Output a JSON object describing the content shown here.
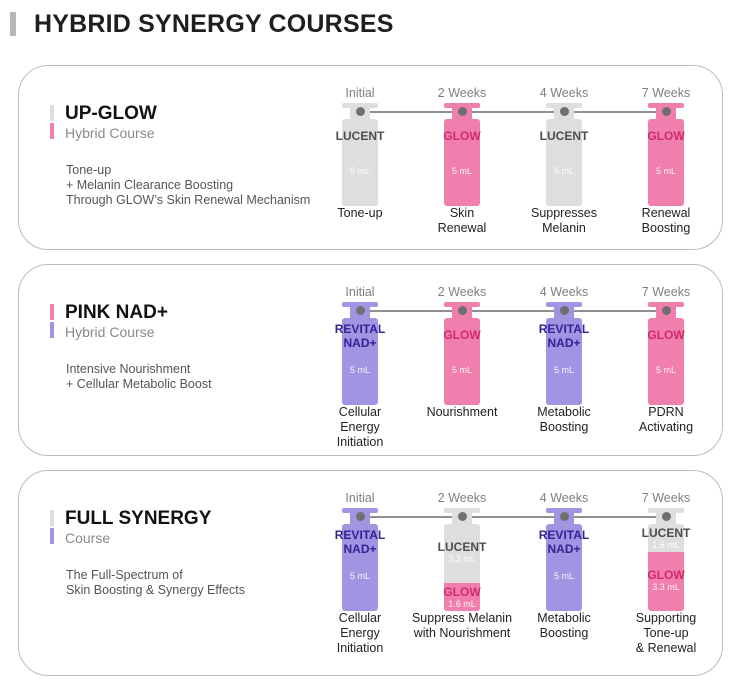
{
  "page_title": "HYBRID SYNERGY COURSES",
  "colors": {
    "gray_vial": "#dedede",
    "pink_vial": "#f07fad",
    "purple_vial": "#a294e2",
    "lucent_text": "#4d4d4d",
    "glow_text": "#d22a6e",
    "revital_text": "#2f2494"
  },
  "courses": [
    {
      "name": "UP-GLOW",
      "subtitle": "Hybrid Course",
      "description": "Tone-up\n+ Melanin Clearance Boosting\nThrough GLOW’s Skin Renewal Mechanism",
      "steps": [
        {
          "week": "Initial",
          "caption": "Tone-up",
          "vial": [
            {
              "type": "lucent",
              "label": "LUCENT",
              "volume": "5 mL"
            }
          ]
        },
        {
          "week": "2 Weeks",
          "caption": "Skin\nRenewal",
          "vial": [
            {
              "type": "glow",
              "label": "GLOW",
              "volume": "5 mL"
            }
          ]
        },
        {
          "week": "4 Weeks",
          "caption": "Suppresses\nMelanin",
          "vial": [
            {
              "type": "lucent",
              "label": "LUCENT",
              "volume": "5 mL"
            }
          ]
        },
        {
          "week": "7 Weeks",
          "caption": "Renewal\nBoosting",
          "vial": [
            {
              "type": "glow",
              "label": "GLOW",
              "volume": "5 mL"
            }
          ]
        }
      ]
    },
    {
      "name": "PINK NAD+",
      "subtitle": "Hybrid Course",
      "description": "Intensive Nourishment\n + Cellular Metabolic Boost",
      "steps": [
        {
          "week": "Initial",
          "caption": "Cellular\nEnergy\nInitiation",
          "vial": [
            {
              "type": "revital",
              "label": "REVITAL\nNAD+",
              "volume": "5 mL"
            }
          ]
        },
        {
          "week": "2 Weeks",
          "caption": "Nourishment",
          "vial": [
            {
              "type": "glow",
              "label": "GLOW",
              "volume": "5 mL"
            }
          ]
        },
        {
          "week": "4 Weeks",
          "caption": "Metabolic\nBoosting",
          "vial": [
            {
              "type": "revital",
              "label": "REVITAL\nNAD+",
              "volume": "5 mL"
            }
          ]
        },
        {
          "week": "7 Weeks",
          "caption": "PDRN\nActivating",
          "vial": [
            {
              "type": "glow",
              "label": "GLOW",
              "volume": "5 mL"
            }
          ]
        }
      ]
    },
    {
      "name": "FULL SYNERGY",
      "subtitle": "Course",
      "description": "The Full-Spectrum of\nSkin Boosting & Synergy Effects",
      "steps": [
        {
          "week": "Initial",
          "caption": "Cellular\nEnergy\nInitiation",
          "vial": [
            {
              "type": "revital",
              "label": "REVITAL\nNAD+",
              "volume": "5 mL"
            }
          ]
        },
        {
          "week": "2 Weeks",
          "caption": "Suppress Melanin\nwith Nourishment",
          "vial": [
            {
              "type": "lucent",
              "label": "LUCENT",
              "volume": "3.3 mL"
            },
            {
              "type": "glow",
              "label": "GLOW",
              "volume": "1.6 mL"
            }
          ]
        },
        {
          "week": "4 Weeks",
          "caption": "Metabolic\nBoosting",
          "vial": [
            {
              "type": "revital",
              "label": "REVITAL\nNAD+",
              "volume": "5 mL"
            }
          ]
        },
        {
          "week": "7 Weeks",
          "caption": "Supporting\nTone-up\n& Renewal",
          "vial": [
            {
              "type": "lucent",
              "label": "LUCENT",
              "volume": "1.6 mL"
            },
            {
              "type": "glow",
              "label": "GLOW",
              "volume": "3.3 mL"
            }
          ]
        }
      ]
    }
  ]
}
